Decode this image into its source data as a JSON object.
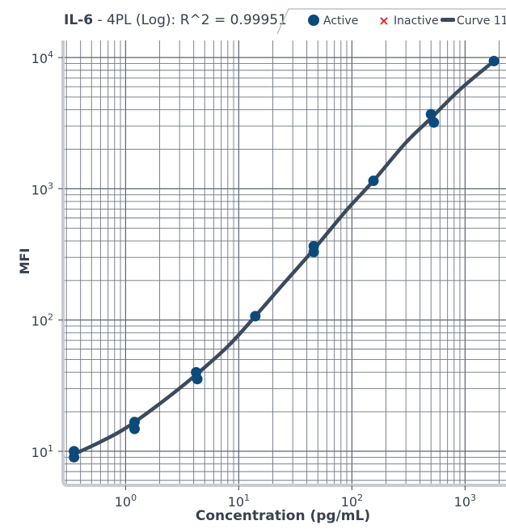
{
  "chart_data": {
    "type": "scatter",
    "title": {
      "analyte": "IL-6",
      "rest": " - 4PL (Log): R^2 = 0.99951"
    },
    "xlabel": "Concentration (pg/mL)",
    "ylabel": "MFI",
    "x_scale": "log",
    "y_scale": "log",
    "xlim": [
      0.28,
      2300
    ],
    "ylim": [
      5.5,
      13500
    ],
    "x_ticks": [
      {
        "value": 1,
        "base": "10",
        "exp": "0"
      },
      {
        "value": 10,
        "base": "10",
        "exp": "1"
      },
      {
        "value": 100,
        "base": "10",
        "exp": "2"
      },
      {
        "value": 1000,
        "base": "10",
        "exp": "3"
      }
    ],
    "y_ticks": [
      {
        "value": 10,
        "base": "10",
        "exp": "1"
      },
      {
        "value": 100,
        "base": "10",
        "exp": "2"
      },
      {
        "value": 1000,
        "base": "10",
        "exp": "3"
      },
      {
        "value": 10000,
        "base": "10",
        "exp": "4"
      }
    ],
    "grid": true,
    "legend": {
      "position": "top-right",
      "items": [
        {
          "label": "Active",
          "marker": "circle",
          "color": "#0c4a7c"
        },
        {
          "label": "Inactive",
          "marker": "x",
          "color": "#e02424"
        },
        {
          "label": "Curve 11",
          "marker": "line",
          "color": "#3b4a5e"
        }
      ]
    },
    "series": [
      {
        "name": "Active",
        "color": "#0c4a7c",
        "points": [
          {
            "x": 0.35,
            "y": 10.0
          },
          {
            "x": 0.35,
            "y": 9.0
          },
          {
            "x": 1.2,
            "y": 16.7
          },
          {
            "x": 1.2,
            "y": 14.8
          },
          {
            "x": 4.2,
            "y": 40
          },
          {
            "x": 4.3,
            "y": 35.5
          },
          {
            "x": 14,
            "y": 107
          },
          {
            "x": 46,
            "y": 365
          },
          {
            "x": 46,
            "y": 330
          },
          {
            "x": 155,
            "y": 1150
          },
          {
            "x": 500,
            "y": 3700
          },
          {
            "x": 530,
            "y": 3200
          },
          {
            "x": 1800,
            "y": 9400
          }
        ]
      },
      {
        "name": "Curve 11",
        "color": "#3b4a5e",
        "curve": {
          "x": [
            0.35,
            0.6,
            1.0,
            2.0,
            4.0,
            8.0,
            14,
            25,
            46,
            90,
            155,
            300,
            500,
            900,
            1800
          ],
          "y": [
            9.5,
            11.8,
            15.0,
            23.0,
            37.0,
            63.0,
            107,
            190,
            345,
            690,
            1150,
            2250,
            3450,
            5700,
            9400
          ]
        }
      }
    ]
  }
}
